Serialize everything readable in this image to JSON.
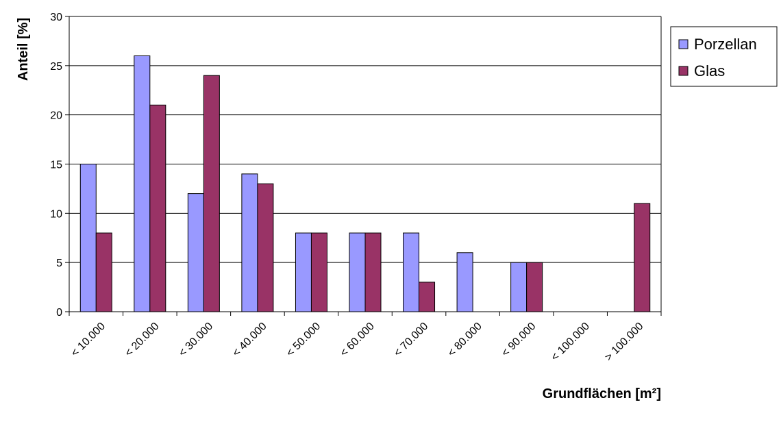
{
  "chart_data": {
    "type": "bar",
    "title": "",
    "xlabel": "Grundflächen [m²]",
    "ylabel": "Anteil [%]",
    "ylim": [
      0,
      30
    ],
    "yticks": [
      "0",
      "5",
      "10",
      "15",
      "20",
      "25",
      "30"
    ],
    "categories": [
      "< 10.000",
      "< 20.000",
      "< 30.000",
      "< 40.000",
      "< 50.000",
      "< 60.000",
      "< 70.000",
      "< 80.000",
      "< 90.000",
      "< 100.000",
      "> 100.000"
    ],
    "series": [
      {
        "name": "Porzellan",
        "color": "#9999ff",
        "values": [
          15,
          26,
          12,
          14,
          8,
          8,
          8,
          6,
          5,
          0,
          0
        ]
      },
      {
        "name": "Glas",
        "color": "#993366",
        "values": [
          8,
          21,
          24,
          13,
          8,
          8,
          3,
          0,
          5,
          0,
          11
        ]
      }
    ],
    "grid": true,
    "legend_position": "right"
  }
}
